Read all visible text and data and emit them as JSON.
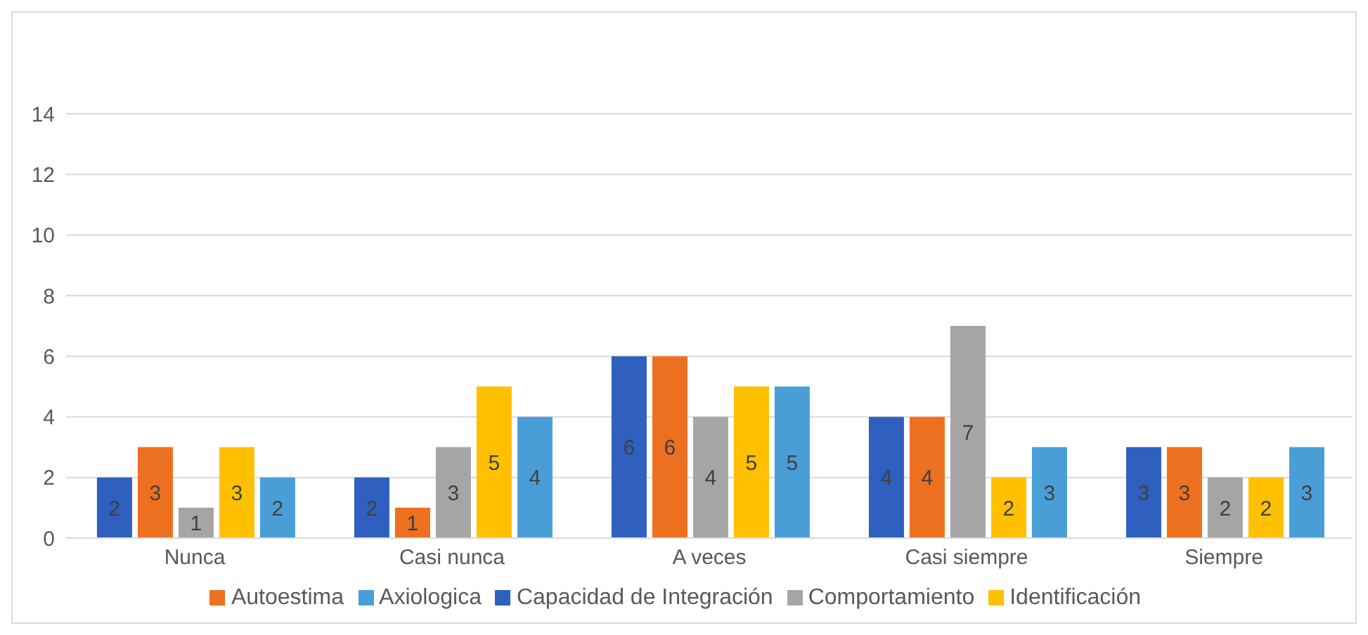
{
  "chart_data": {
    "type": "bar",
    "categories": [
      "Nunca",
      "Casi nunca",
      "A veces",
      "Casi siempre",
      "Siempre"
    ],
    "series": [
      {
        "name": "Capacidad de Integración",
        "color": "#2f5fbf",
        "values": [
          2,
          2,
          6,
          4,
          3
        ]
      },
      {
        "name": "Autoestima",
        "color": "#ed7021",
        "values": [
          3,
          1,
          6,
          4,
          3
        ]
      },
      {
        "name": "Comportamiento",
        "color": "#a5a5a5",
        "values": [
          1,
          3,
          4,
          7,
          2
        ]
      },
      {
        "name": "Identificación",
        "color": "#ffc000",
        "values": [
          3,
          5,
          5,
          2,
          2
        ]
      },
      {
        "name": "Axiologica",
        "color": "#4a9ed8",
        "values": [
          2,
          4,
          5,
          3,
          3
        ]
      }
    ],
    "ylim": [
      0,
      14
    ],
    "yticks": [
      0,
      2,
      4,
      6,
      8,
      10,
      12,
      14
    ],
    "grid": "y",
    "legend": "bottom",
    "data_labels": true
  }
}
